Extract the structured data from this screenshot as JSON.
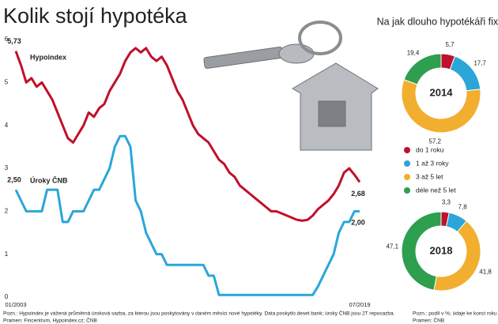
{
  "title": "Kolik stojí hypotéka",
  "footnote_left": [
    "Pozn.: Hypoindex je vážená průměrná úroková sazba, za kterou jsou poskytovány v daném měsíci nové hypotéky. Data poskytlo deset bank; úroky ČNB jsou 2T reposazba.",
    "Pramen: Fincentrum, Hypoindex.cz; ČNB"
  ],
  "footnote_right": [
    "Pozn.: podíl v %; údaje ke konci roku",
    "Pramen: ČNB"
  ],
  "chart_data": [
    {
      "type": "line",
      "categories": [
        "01/2003",
        null,
        null,
        null,
        null,
        null,
        null,
        null,
        null,
        null,
        null,
        null,
        null,
        null,
        null,
        null,
        null,
        null,
        null,
        null,
        null,
        null,
        null,
        null,
        null,
        null,
        null,
        null,
        null,
        null,
        null,
        null,
        null,
        null,
        null,
        null,
        null,
        null,
        null,
        null,
        null,
        null,
        null,
        null,
        null,
        null,
        null,
        null,
        null,
        null,
        null,
        null,
        null,
        null,
        null,
        null,
        null,
        null,
        null,
        null,
        null,
        null,
        null,
        null,
        null,
        null,
        "07/2019"
      ],
      "ylim": [
        0,
        6
      ],
      "yticks": [
        0,
        1,
        2,
        3,
        4,
        5,
        6
      ],
      "series": [
        {
          "name": "Hypoindex",
          "color": "#c0102a",
          "first_label": "5,73",
          "last_label": "2,68",
          "values": [
            5.73,
            5.4,
            5.0,
            5.1,
            4.9,
            5.0,
            4.8,
            4.6,
            4.3,
            4.0,
            3.7,
            3.6,
            3.8,
            4.0,
            4.3,
            4.2,
            4.4,
            4.5,
            4.8,
            5.0,
            5.2,
            5.5,
            5.7,
            5.8,
            5.7,
            5.8,
            5.6,
            5.5,
            5.6,
            5.4,
            5.1,
            4.8,
            4.6,
            4.3,
            4.0,
            3.8,
            3.7,
            3.6,
            3.4,
            3.2,
            3.1,
            2.9,
            2.8,
            2.6,
            2.5,
            2.4,
            2.3,
            2.2,
            2.1,
            2.0,
            2.0,
            1.95,
            1.9,
            1.85,
            1.8,
            1.78,
            1.8,
            1.9,
            2.05,
            2.15,
            2.25,
            2.4,
            2.6,
            2.9,
            3.0,
            2.85,
            2.68
          ]
        },
        {
          "name": "Úroky ČNB",
          "color": "#2aa6d9",
          "first_label": "2,50",
          "last_label": "2,00",
          "values": [
            2.5,
            2.25,
            2.0,
            2.0,
            2.0,
            2.0,
            2.5,
            2.5,
            2.5,
            1.75,
            1.75,
            2.0,
            2.0,
            2.0,
            2.25,
            2.5,
            2.5,
            2.75,
            3.0,
            3.5,
            3.75,
            3.75,
            3.5,
            2.25,
            2.0,
            1.5,
            1.25,
            1.0,
            1.0,
            0.75,
            0.75,
            0.75,
            0.75,
            0.75,
            0.75,
            0.75,
            0.75,
            0.5,
            0.5,
            0.05,
            0.05,
            0.05,
            0.05,
            0.05,
            0.05,
            0.05,
            0.05,
            0.05,
            0.05,
            0.05,
            0.05,
            0.05,
            0.05,
            0.05,
            0.05,
            0.05,
            0.05,
            0.05,
            0.25,
            0.5,
            0.75,
            1.0,
            1.5,
            1.75,
            1.75,
            2.0,
            2.0
          ]
        }
      ]
    },
    {
      "type": "donut",
      "title": "Na jak dlouho hypotékáři fixují",
      "categories": [
        "do 1 roku",
        "1 až 3 roky",
        "3 až 5 let",
        "déle než 5 let"
      ],
      "colors": [
        "#c0102a",
        "#2aa6d9",
        "#f2ae2e",
        "#2e9e4f"
      ],
      "series": [
        {
          "name": "2014",
          "values": [
            5.7,
            17.7,
            57.2,
            19.4
          ],
          "value_labels": [
            "5,7",
            "17,7",
            "57,2",
            "19,4"
          ]
        },
        {
          "name": "2018",
          "values": [
            3.3,
            7.8,
            41.8,
            47.1
          ],
          "value_labels": [
            "3,3",
            "7,8",
            "41,8",
            "47,1"
          ]
        }
      ]
    }
  ]
}
